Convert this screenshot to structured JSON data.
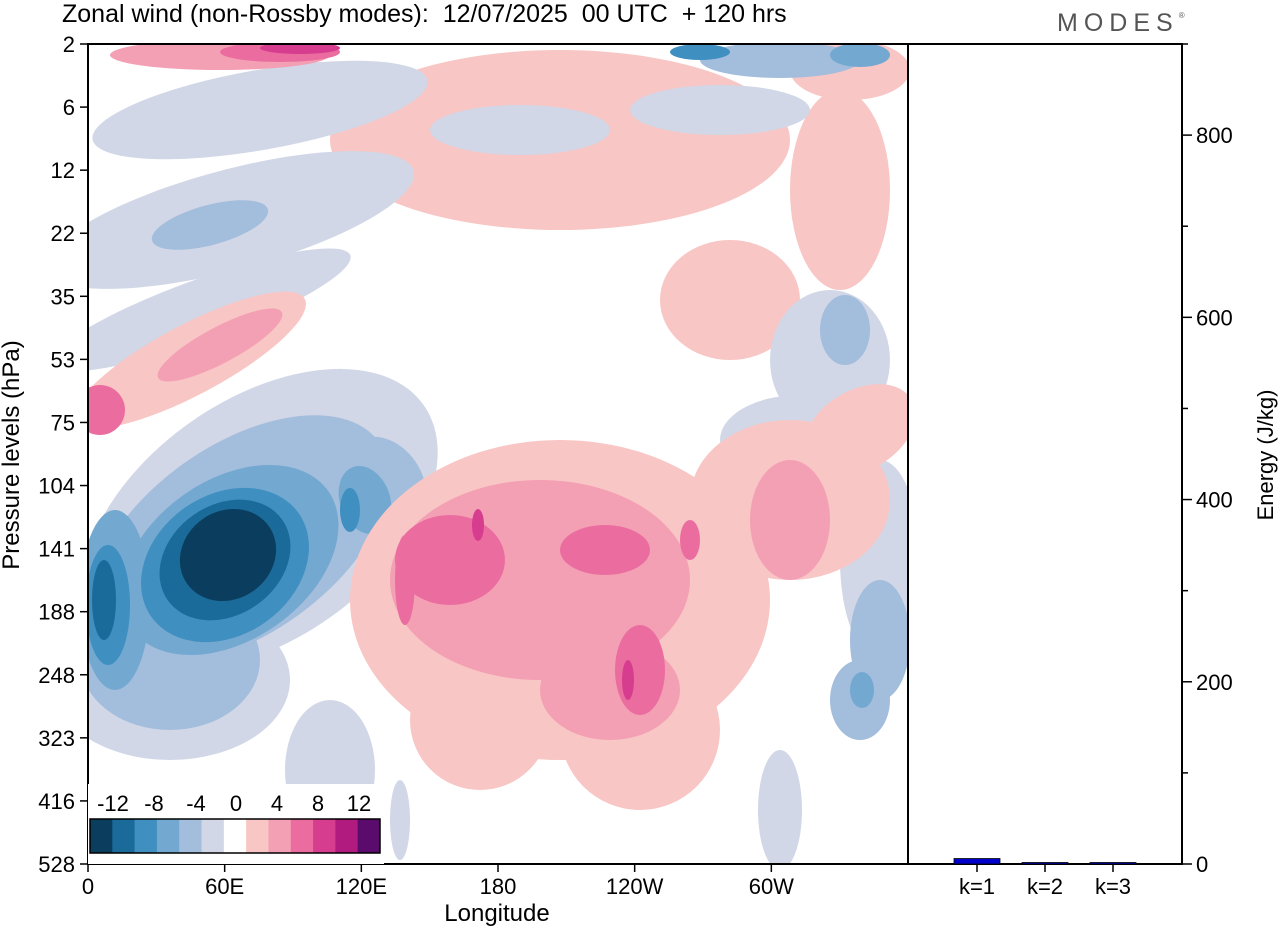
{
  "title": "Zonal wind (non-Rossby modes):  12/07/2025  00 UTC  + 120 hrs",
  "logo": "MODES",
  "chart_data": [
    {
      "type": "heatmap",
      "title": "Zonal wind (non-Rossby modes):  12/07/2025  00 UTC  + 120 hrs",
      "xlabel": "Longitude",
      "ylabel": "Pressure levels (hPa)",
      "x_ticks": [
        "0",
        "60E",
        "120E",
        "180",
        "120W",
        "60W"
      ],
      "x_tick_values": [
        0,
        60,
        120,
        180,
        240,
        300
      ],
      "x_range": [
        0,
        360
      ],
      "y_ticks": [
        "2",
        "6",
        "12",
        "22",
        "35",
        "53",
        "75",
        "104",
        "141",
        "188",
        "248",
        "323",
        "416",
        "528"
      ],
      "colorbar": {
        "labels": [
          "-12",
          "-8",
          "-4",
          "0",
          "4",
          "8",
          "12"
        ],
        "levels": [
          -14,
          -12,
          -10,
          -8,
          -6,
          -4,
          -2,
          2,
          4,
          6,
          8,
          10,
          12,
          14
        ],
        "colors": [
          "#0b3d5e",
          "#1a6b9a",
          "#3f8fc1",
          "#73a8d0",
          "#a3bddc",
          "#d1d7e7",
          "#ffffff",
          "#f8c6c4",
          "#f4a0b4",
          "#eb6da0",
          "#d73d8f",
          "#b11a7e",
          "#5a0b6b"
        ]
      },
      "features": [
        {
          "name": "strong easterly core",
          "lon": 60,
          "level": "141-188",
          "value": -14
        },
        {
          "name": "easterly band",
          "lon": 5,
          "level": "104-248",
          "value": -10
        },
        {
          "name": "westerly band upper",
          "lon": 220,
          "level": "104-323",
          "value": 8
        },
        {
          "name": "westerly band lower",
          "lon": 250,
          "level": "188-323",
          "value": 6
        }
      ]
    },
    {
      "type": "bar",
      "ylabel": "Energy (J/kg)",
      "categories": [
        "k=1",
        "k=2",
        "k=3"
      ],
      "values": [
        6,
        1,
        1
      ],
      "ylim": [
        0,
        900
      ],
      "y_ticks": [
        0,
        200,
        400,
        600,
        800
      ],
      "bar_color": "#0000cc"
    }
  ]
}
